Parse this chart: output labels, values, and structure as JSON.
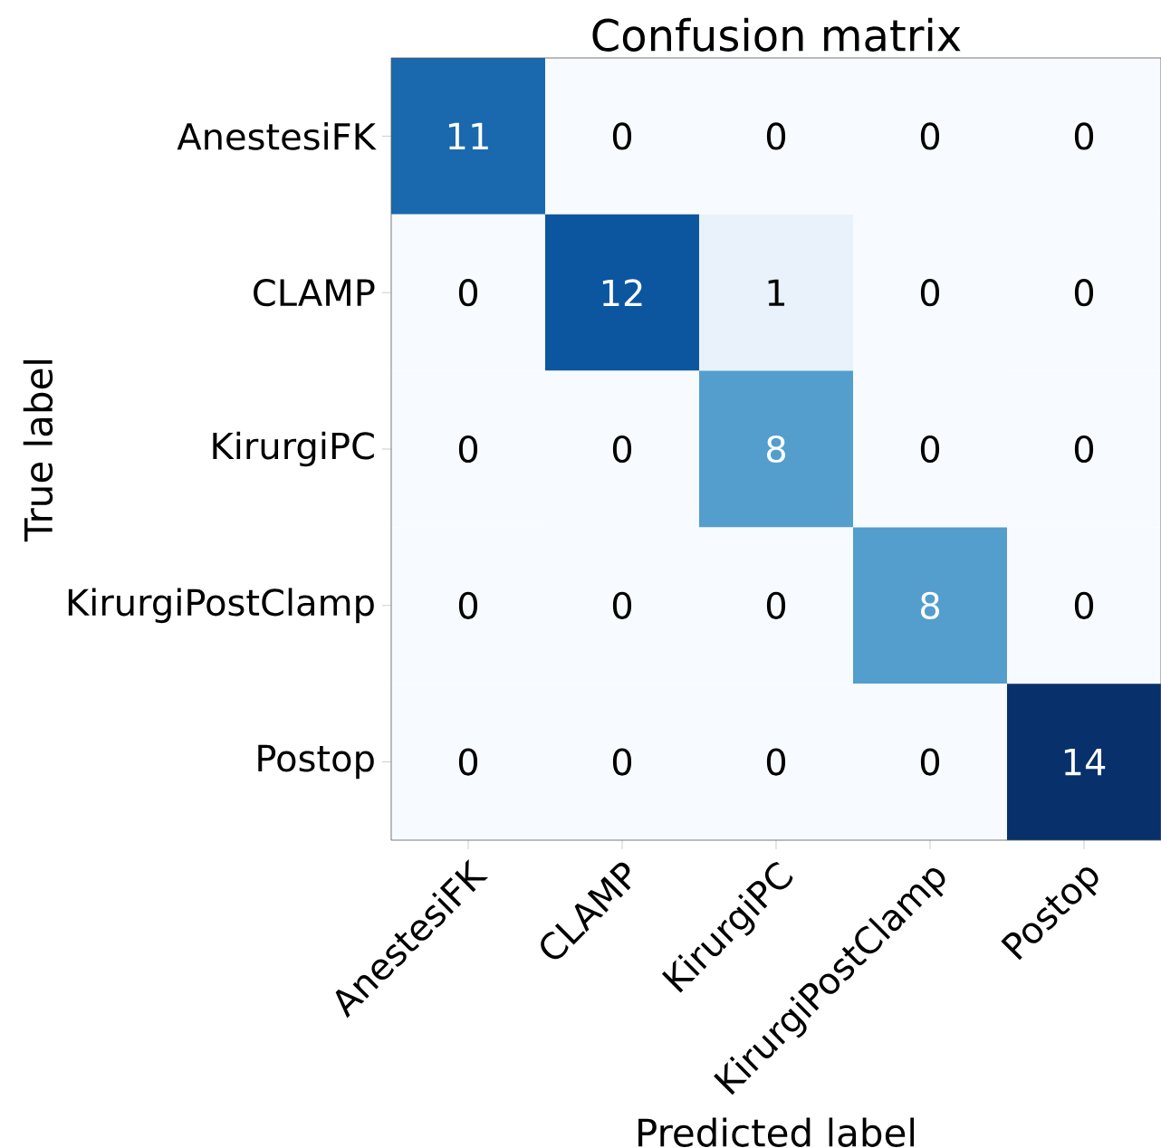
{
  "chart_data": {
    "type": "heatmap",
    "title": "Confusion matrix",
    "xlabel": "Predicted label",
    "ylabel": "True label",
    "categories": [
      "AnestesiFK",
      "CLAMP",
      "KirurgiPC",
      "KirurgiPostClamp",
      "Postop"
    ],
    "y_categories": [
      "AnestesiFK",
      "CLAMP",
      "KirurgiPC",
      "KirurgiPostClamp",
      "Postop"
    ],
    "cells": [
      [
        11,
        0,
        0,
        0,
        0
      ],
      [
        0,
        12,
        1,
        0,
        0
      ],
      [
        0,
        0,
        8,
        0,
        0
      ],
      [
        0,
        0,
        0,
        8,
        0
      ],
      [
        0,
        0,
        0,
        0,
        14
      ]
    ],
    "data_labels": true
  }
}
